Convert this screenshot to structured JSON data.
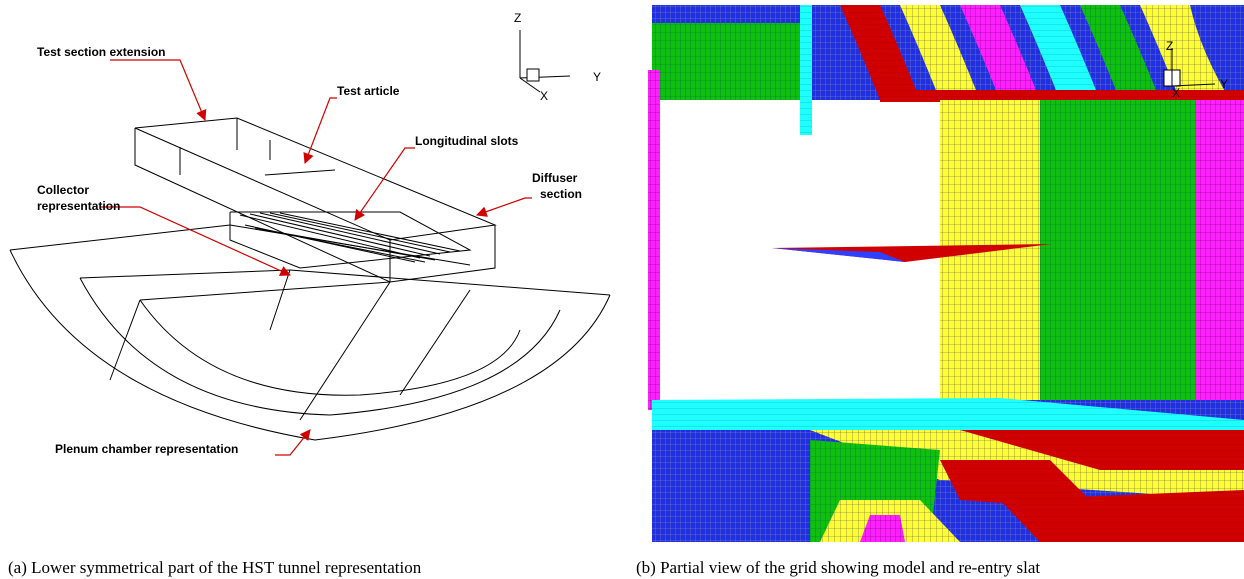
{
  "figure_a": {
    "labels": [
      {
        "lines": [
          "Test section extension"
        ]
      },
      {
        "lines": [
          "Test article"
        ]
      },
      {
        "lines": [
          "Longitudinal slots"
        ]
      },
      {
        "lines": [
          "Collector",
          "representation"
        ]
      },
      {
        "lines": [
          "Diffuser",
          "section"
        ]
      },
      {
        "lines": [
          "Plenum chamber representation"
        ]
      }
    ],
    "axes": [
      "Z",
      "Y",
      "X"
    ],
    "caption": "(a) Lower symmetrical part of the HST tunnel representation"
  },
  "figure_b": {
    "axes": [
      "Z",
      "Y",
      "X"
    ],
    "caption": "(b) Partial view of the grid showing model and re-entry slat"
  }
}
